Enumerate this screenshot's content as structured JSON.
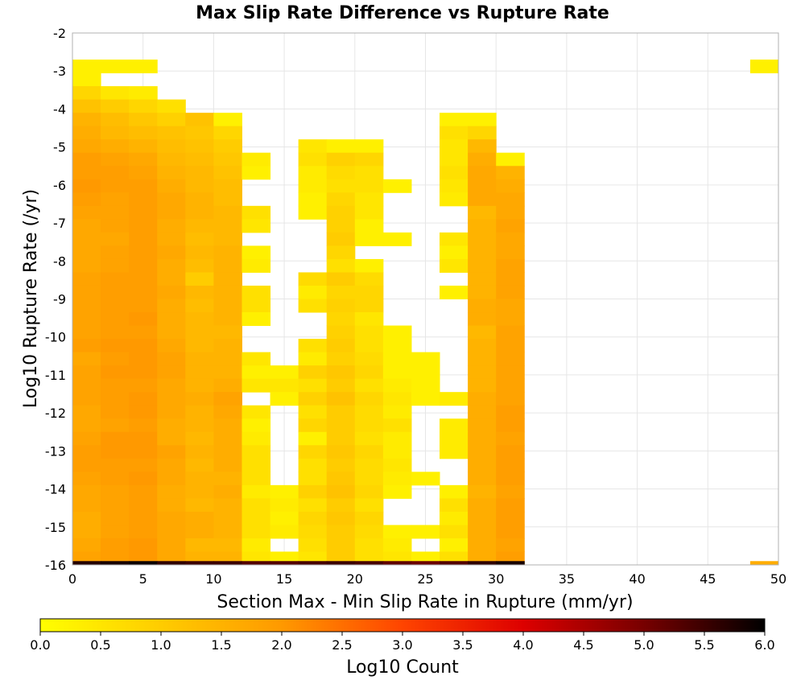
{
  "chart_data": {
    "type": "heatmap",
    "title": "Max Slip Rate Difference vs Rupture Rate",
    "xlabel": "Section Max - Min Slip Rate in Rupture (mm/yr)",
    "ylabel": "Log10 Rupture Rate (/yr)",
    "xlim": [
      0,
      50
    ],
    "ylim": [
      -16,
      -2
    ],
    "x_ticks": [
      "0",
      "5",
      "10",
      "15",
      "20",
      "25",
      "30",
      "35",
      "40",
      "45",
      "50"
    ],
    "y_ticks": [
      "-2",
      "-3",
      "-4",
      "-5",
      "-6",
      "-7",
      "-8",
      "-9",
      "-10",
      "-11",
      "-12",
      "-13",
      "-14",
      "-15",
      "-16"
    ],
    "grid": true,
    "bin_width": 2,
    "bin_height": 0.35,
    "x_bin_starts": [
      0,
      2,
      4,
      6,
      8,
      10,
      12,
      14,
      16,
      18,
      20,
      22,
      24,
      26,
      28,
      30,
      48
    ],
    "y_bin_tops": [
      -2.7,
      -3.05,
      -3.4,
      -3.75,
      -4.1,
      -4.45,
      -4.8,
      -5.15,
      -5.5,
      -5.85,
      -6.2,
      -6.55,
      -6.9,
      -7.25,
      -7.6,
      -7.95,
      -8.3,
      -8.65,
      -9.0,
      -9.35,
      -9.7,
      -10.05,
      -10.4,
      -10.75,
      -11.1,
      -11.45,
      -11.8,
      -12.15,
      -12.5,
      -12.85,
      -13.2,
      -13.55,
      -13.9,
      -14.25,
      -14.6,
      -14.95,
      -15.3,
      -15.65
    ],
    "rows": [
      "0.3 0.3 0.3 - - - - - - - - - - - - - 0.3",
      "0.3 - - - - - - - - - - - - - - - -",
      "0.8 0.5 0.4 - - - - - - - - - - - - - -",
      "1.2 1.0 0.8 0.6 - - - - - - - - - - - - -",
      "1.5 1.3 1.1 0.9 1.2 0.3 - - - - - - - 0.3 0.3 - -",
      "1.6 1.4 1.3 1.2 1.1 0.8 - - - - - - - 0.6 0.8 - -",
      "1.7 1.6 1.5 1.3 1.2 1.0 - - 0.5 0.3 0.3 - - 0.5 1.4 - -",
      "1.9 1.8 1.7 1.4 1.3 1.1 0.4 - 0.6 0.9 0.8 - - 0.5 1.6 0.3 -",
      "1.9 1.9 1.8 1.5 1.4 1.2 0.3 - 0.4 0.7 0.6 - - 0.6 1.7 1.5 -",
      "2.0 1.9 1.9 1.6 1.4 1.3 - - 0.4 0.6 0.6 0.3 - 0.5 1.7 1.6 -",
      "1.9 1.8 1.9 1.7 1.5 1.3 - - 0.3 0.8 0.5 - - 0.4 1.7 1.7 -",
      "1.8 1.8 1.9 1.7 1.5 1.4 0.6 - 0.3 0.9 0.5 - - - 1.4 1.7 -",
      "1.7 1.8 1.9 1.6 1.4 1.4 0.5 - - 0.9 0.3 - - - 1.5 1.8 -",
      "1.7 1.7 1.9 1.6 1.3 1.4 - - - 1.0 0.3 0.3 - 0.5 1.5 1.7 -",
      "1.7 1.8 1.9 1.7 1.4 1.5 0.3 - - 0.8 - - - 0.3 1.5 1.7 -",
      "1.7 1.8 1.9 1.6 1.3 1.5 0.4 - - 0.6 0.3 - - 0.5 1.5 1.8 -",
      "1.8 1.9 1.9 1.6 1.0 1.5 - - 0.7 1.0 0.7 - - - 1.5 1.8 -",
      "1.8 1.9 1.9 1.7 1.4 1.5 0.6 - 0.4 0.8 0.8 - - 0.3 1.5 1.8 -",
      "1.8 1.9 1.9 1.6 1.3 1.5 0.6 - 0.6 0.9 0.8 - - - 1.6 1.7 -",
      "1.8 1.9 2.0 1.6 1.4 1.5 0.3 - - 0.8 0.5 - - - 1.6 1.7 -",
      "1.8 1.9 1.9 1.6 1.4 1.4 - - - 0.9 0.6 0.3 - - 1.4 1.8 -",
      "1.9 2.0 2.0 1.7 1.4 1.5 - - 0.6 1.0 0.6 0.3 - - 1.5 1.8 -",
      "1.7 1.9 2.0 1.8 1.5 1.5 0.5 - 0.4 0.9 0.7 0.3 0.3 - 1.5 1.8 -",
      "1.8 2.0 2.0 1.8 1.5 1.5 0.3 0.3 0.9 1.1 0.8 0.3 0.3 - 1.5 1.8 -",
      "1.8 1.9 1.9 1.7 1.5 1.6 0.5 0.5 0.6 1.0 0.6 0.4 0.3 - 1.5 1.8 -",
      "1.8 1.9 2.0 1.7 1.6 1.8 - 0.3 0.9 1.2 0.8 0.5 0.3 0.4 1.6 1.8 -",
      "1.7 1.9 2.0 1.7 1.5 1.7 0.5 - 0.6 1.0 0.7 0.4 - - 1.6 1.9 -",
      "1.7 1.8 1.9 1.6 1.5 1.6 0.3 - 0.8 1.0 0.7 0.6 - 0.4 1.6 1.9 -",
      "1.8 2.0 2.0 1.6 1.4 1.6 0.4 - 0.3 1.0 0.6 0.4 - 0.4 1.6 1.8 -",
      "1.9 2.0 2.0 1.8 1.5 1.6 0.6 - 0.8 1.1 0.8 0.4 - 0.4 1.6 1.9 -",
      "1.9 1.9 1.9 1.7 1.4 1.6 0.6 - 0.6 1.0 0.7 0.5 - - 1.6 1.9 -",
      "1.8 1.9 2.0 1.7 1.5 1.5 0.6 - 0.6 1.1 0.7 0.4 0.3 - 1.6 1.9 -",
      "1.7 1.8 1.9 1.6 1.5 1.6 0.4 0.3 0.9 1.2 0.8 0.3 - 0.3 1.5 1.8 -",
      "1.7 1.8 1.9 1.6 1.4 1.5 0.6 0.4 0.6 1.0 0.6 - - 0.6 1.6 1.9 -",
      "1.6 1.8 1.9 1.7 1.6 1.5 0.6 0.3 0.8 1.1 0.8 - - 0.4 1.6 1.9 -",
      "1.6 1.8 1.9 1.7 1.6 1.5 0.6 0.4 0.7 1.0 0.7 0.3 0.3 0.6 1.6 1.9 -",
      "1.7 1.9 2.0 1.7 1.4 1.4 0.4 - 0.6 1.0 0.6 0.4 - 0.3 1.6 1.8 -",
      "1.8 1.9 2.0 1.7 1.5 1.5 0.5 0.3 0.5 1.0 0.6 0.5 0.3 0.6 1.6 1.9 -"
    ],
    "bottom_row_band": {
      "y_range": [
        -16.0,
        -15.9
      ],
      "x_bin_starts": [
        0,
        2,
        4,
        6,
        8,
        10,
        12,
        14,
        16,
        18,
        20,
        22,
        24,
        26,
        28,
        30,
        48
      ],
      "values": [
        5.7,
        5.8,
        5.9,
        5.6,
        5.5,
        5.5,
        5.3,
        5.3,
        5.4,
        5.5,
        5.4,
        5.2,
        5.1,
        5.3,
        5.6,
        5.8,
        1.6
      ]
    },
    "colorbar": {
      "label": "Log10 Count",
      "range": [
        0.0,
        6.0
      ],
      "ticks": [
        "0.0",
        "0.5",
        "1.0",
        "1.5",
        "2.0",
        "2.5",
        "3.0",
        "3.5",
        "4.0",
        "4.5",
        "5.0",
        "5.5",
        "6.0"
      ],
      "colors": [
        "#ffff00",
        "#ffcc00",
        "#ff9900",
        "#ff4400",
        "#dd0000",
        "#770000",
        "#000000"
      ]
    }
  }
}
